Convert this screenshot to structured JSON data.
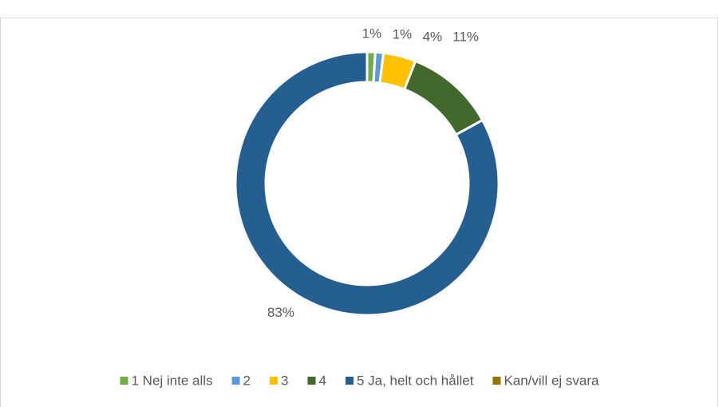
{
  "chart_data": {
    "type": "donut",
    "categories": [
      "1 Nej inte alls",
      "2",
      "3",
      "4",
      "5 Ja, helt och hållet",
      "Kan/vill ej svara"
    ],
    "values": [
      1,
      1,
      4,
      11,
      83,
      0
    ],
    "value_labels": [
      "1%",
      "1%",
      "4%",
      "11%",
      "83%",
      null
    ],
    "colors": [
      "#70ad47",
      "#5b9bd5",
      "#ffc000",
      "#43682b",
      "#255e91",
      "#997300"
    ],
    "legend": "bottom"
  }
}
